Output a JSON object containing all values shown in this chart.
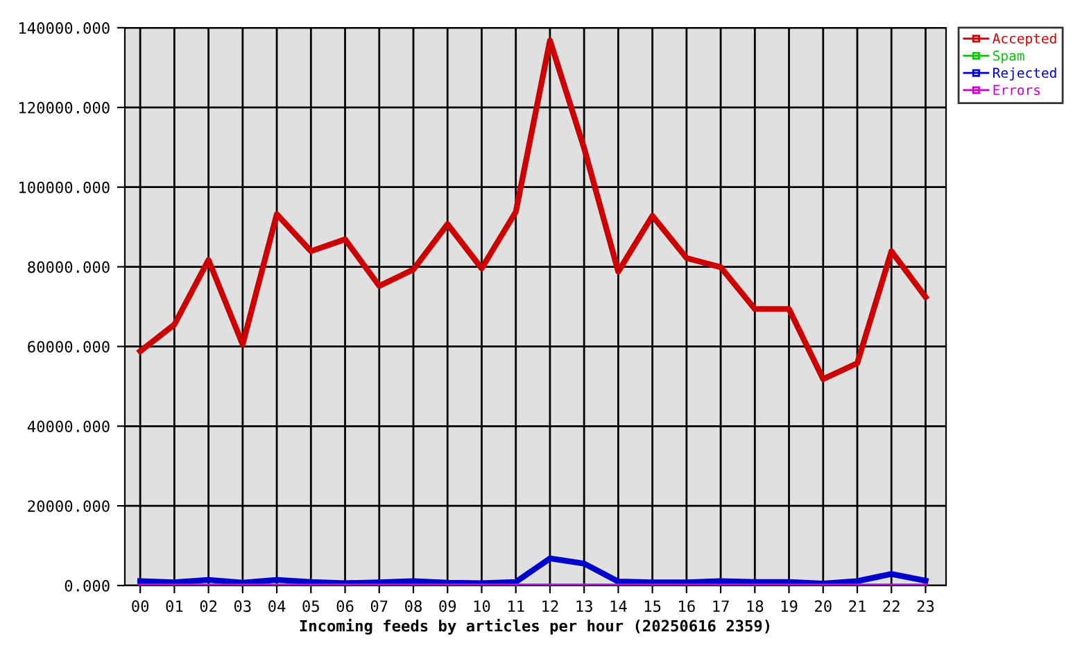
{
  "chart_data": {
    "type": "line",
    "xlabel": "Incoming feeds by articles per hour (20250616 2359)",
    "categories": [
      "00",
      "01",
      "02",
      "03",
      "04",
      "05",
      "06",
      "07",
      "08",
      "09",
      "10",
      "11",
      "12",
      "13",
      "14",
      "15",
      "16",
      "17",
      "18",
      "19",
      "20",
      "21",
      "22",
      "23"
    ],
    "series": [
      {
        "name": "Accepted",
        "color": "#cc0000",
        "values": [
          58800,
          65500,
          81700,
          60500,
          93200,
          83900,
          86900,
          75200,
          79300,
          90700,
          79600,
          93800,
          136800,
          109800,
          78800,
          92800,
          82200,
          79900,
          69400,
          69400,
          51800,
          55800,
          83900,
          72400
        ]
      },
      {
        "name": "Spam",
        "color": "#00cc00",
        "values": [
          null,
          null,
          null,
          null,
          null,
          null,
          null,
          null,
          null,
          null,
          null,
          null,
          null,
          null,
          null,
          null,
          null,
          null,
          null,
          null,
          null,
          null,
          null,
          null
        ]
      },
      {
        "name": "Rejected",
        "color": "#0000cc",
        "values": [
          1100,
          800,
          1400,
          700,
          1400,
          900,
          600,
          800,
          1100,
          700,
          600,
          900,
          6800,
          5500,
          1000,
          800,
          800,
          1100,
          900,
          900,
          500,
          1100,
          2900,
          1200
        ]
      },
      {
        "name": "Errors",
        "color": "#cc00cc",
        "values": [
          0,
          0,
          0,
          0,
          0,
          0,
          0,
          0,
          0,
          0,
          0,
          0,
          0,
          0,
          0,
          0,
          0,
          0,
          0,
          0,
          0,
          0,
          0,
          0
        ]
      }
    ],
    "ylim": [
      0,
      140000
    ],
    "yticks": [
      {
        "value": 0,
        "label": "0.000"
      },
      {
        "value": 20000,
        "label": "20000.000"
      },
      {
        "value": 40000,
        "label": "40000.000"
      },
      {
        "value": 60000,
        "label": "60000.000"
      },
      {
        "value": 80000,
        "label": "80000.000"
      },
      {
        "value": 100000,
        "label": "100000.000"
      },
      {
        "value": 120000,
        "label": "120000.000"
      },
      {
        "value": 140000,
        "label": "140000.000"
      }
    ],
    "grid": true,
    "legend": "top right",
    "marker": "none",
    "line_style": "solid"
  }
}
